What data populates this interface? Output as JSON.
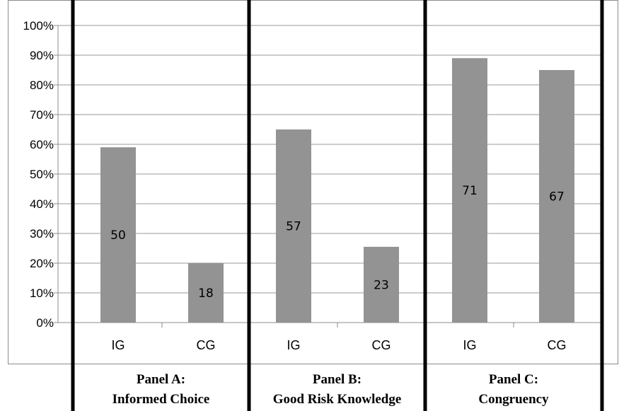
{
  "chart_data": {
    "type": "bar",
    "y_axis": {
      "min": 0,
      "max": 100,
      "step": 10,
      "tick_labels": [
        "0%",
        "10%",
        "20%",
        "30%",
        "40%",
        "50%",
        "60%",
        "70%",
        "80%",
        "90%",
        "100%"
      ]
    },
    "grid": true,
    "bar_color": "#939393",
    "panels": [
      {
        "title_line1": "Panel A:",
        "title_line2": "Informed Choice",
        "categories": [
          "IG",
          "CG"
        ],
        "values": [
          59,
          20
        ],
        "data_labels": [
          "50",
          "18"
        ]
      },
      {
        "title_line1": "Panel B:",
        "title_line2": "Good Risk Knowledge",
        "categories": [
          "IG",
          "CG"
        ],
        "values": [
          65,
          25.5
        ],
        "data_labels": [
          "57",
          "23"
        ]
      },
      {
        "title_line1": "Panel C:",
        "title_line2": "Congruency",
        "categories": [
          "IG",
          "CG"
        ],
        "values": [
          89,
          85
        ],
        "data_labels": [
          "71",
          "67"
        ]
      }
    ]
  }
}
